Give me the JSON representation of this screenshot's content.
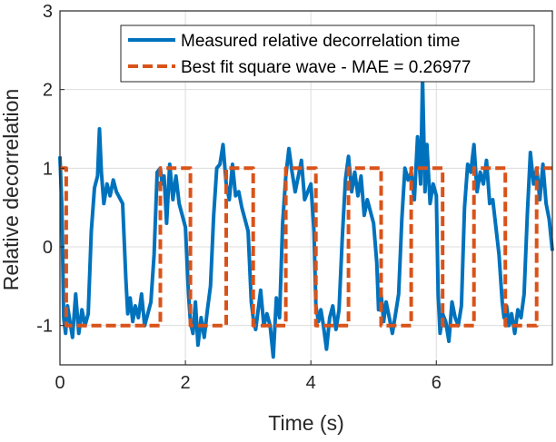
{
  "chart_data": {
    "type": "line",
    "title": "",
    "xlabel": "Time (s)",
    "ylabel": "Relative decorrelation",
    "xlim": [
      0,
      7.85
    ],
    "ylim": [
      -1.5,
      3
    ],
    "xticks": [
      0,
      2,
      4,
      6
    ],
    "yticks": [
      -1,
      0,
      1,
      2,
      3
    ],
    "grid": true,
    "legend_position": "top-right",
    "series": [
      {
        "name": "Measured relative decorrelation time",
        "color": "#0072BD",
        "style": "solid",
        "x": [
          0,
          0.03,
          0.06,
          0.09,
          0.12,
          0.16,
          0.2,
          0.25,
          0.3,
          0.35,
          0.4,
          0.45,
          0.5,
          0.55,
          0.6,
          0.63,
          0.66,
          0.7,
          0.75,
          0.8,
          0.85,
          0.9,
          1.0,
          1.05,
          1.08,
          1.12,
          1.16,
          1.2,
          1.25,
          1.3,
          1.35,
          1.4,
          1.45,
          1.5,
          1.55,
          1.6,
          1.63,
          1.66,
          1.7,
          1.75,
          1.8,
          1.85,
          1.9,
          2.0,
          2.05,
          2.08,
          2.12,
          2.16,
          2.2,
          2.25,
          2.3,
          2.35,
          2.4,
          2.45,
          2.5,
          2.55,
          2.6,
          2.65,
          2.7,
          2.75,
          2.8,
          2.85,
          2.9,
          3.0,
          3.05,
          3.08,
          3.12,
          3.16,
          3.2,
          3.25,
          3.3,
          3.35,
          3.4,
          3.45,
          3.5,
          3.55,
          3.6,
          3.65,
          3.7,
          3.75,
          3.8,
          3.85,
          3.9,
          4.0,
          4.05,
          4.08,
          4.12,
          4.16,
          4.2,
          4.25,
          4.3,
          4.35,
          4.4,
          4.45,
          4.5,
          4.55,
          4.6,
          4.65,
          4.7,
          4.75,
          4.8,
          4.85,
          4.9,
          5.0,
          5.05,
          5.08,
          5.12,
          5.16,
          5.2,
          5.25,
          5.3,
          5.35,
          5.4,
          5.45,
          5.5,
          5.55,
          5.6,
          5.65,
          5.7,
          5.75,
          5.78,
          5.82,
          5.85,
          5.9,
          5.95,
          6.0,
          6.03,
          6.06,
          6.1,
          6.15,
          6.2,
          6.25,
          6.3,
          6.35,
          6.4,
          6.45,
          6.5,
          6.55,
          6.6,
          6.65,
          6.7,
          6.75,
          6.8,
          6.85,
          6.9,
          7.0,
          7.05,
          7.08,
          7.12,
          7.16,
          7.2,
          7.25,
          7.3,
          7.35,
          7.4,
          7.45,
          7.5,
          7.55,
          7.6,
          7.65,
          7.7,
          7.75,
          7.8,
          7.85
        ],
        "y": [
          1.15,
          0.5,
          -0.9,
          -1.1,
          -0.75,
          -0.95,
          -1.15,
          -0.6,
          -1.1,
          -0.8,
          -1.0,
          -0.85,
          0.2,
          0.75,
          0.9,
          1.5,
          0.95,
          0.55,
          0.8,
          0.65,
          0.85,
          0.7,
          0.55,
          -0.4,
          -0.85,
          -0.65,
          -0.95,
          -0.75,
          -0.9,
          -0.6,
          -1.0,
          -0.85,
          -0.7,
          -0.1,
          0.95,
          1.0,
          0.8,
          0.9,
          0.3,
          1.05,
          0.6,
          0.9,
          0.55,
          0.25,
          -0.6,
          -0.95,
          -1.1,
          -0.7,
          -1.25,
          -0.9,
          -1.15,
          -0.8,
          -0.5,
          0.4,
          1.0,
          1.05,
          1.3,
          0.8,
          0.6,
          1.05,
          0.65,
          0.7,
          0.5,
          0.2,
          -0.7,
          -0.9,
          -1.05,
          -0.8,
          -0.55,
          -1.0,
          -0.85,
          -1.0,
          -1.4,
          -0.65,
          -0.9,
          0.3,
          0.9,
          1.25,
          0.95,
          0.7,
          0.9,
          1.1,
          0.6,
          0.8,
          0.2,
          -0.75,
          -0.95,
          -0.8,
          -1.0,
          -1.3,
          -0.9,
          -0.75,
          -1.05,
          -0.8,
          0.1,
          0.85,
          1.15,
          0.7,
          0.95,
          0.65,
          0.9,
          0.4,
          0.6,
          0.3,
          -0.2,
          -0.8,
          -0.6,
          -0.95,
          -0.7,
          -0.9,
          -1.1,
          -0.85,
          -0.6,
          0.35,
          1.0,
          0.85,
          0.95,
          0.6,
          1.4,
          0.8,
          2.15,
          0.7,
          1.3,
          0.55,
          0.8,
          0.65,
          -0.6,
          -1.1,
          -0.85,
          -0.95,
          -1.2,
          -0.7,
          -0.9,
          -1.0,
          -0.75,
          0.5,
          1.05,
          0.95,
          1.3,
          0.7,
          0.95,
          0.8,
          1.1,
          0.55,
          0.6,
          -0.1,
          -0.7,
          -0.9,
          -0.75,
          -1.0,
          -0.85,
          -1.1,
          -0.8,
          -0.9,
          -0.6,
          0.4,
          1.2,
          0.8,
          1.0,
          0.6,
          1.05,
          0.55,
          0.35,
          -0.05
        ]
      },
      {
        "name": "Best fit square wave - MAE = 0.26977",
        "color": "#D95319",
        "style": "dashed",
        "x": [
          0,
          0.1,
          0.1,
          1.05,
          1.05,
          1.05,
          1.6,
          1.6,
          2.08,
          2.08,
          2.65,
          2.65,
          3.08,
          3.08,
          3.6,
          3.6,
          4.08,
          4.08,
          4.6,
          4.6,
          5.12,
          5.12,
          5.6,
          5.6,
          6.1,
          6.1,
          6.6,
          6.6,
          7.1,
          7.1,
          7.6,
          7.6,
          7.85
        ],
        "y": [
          1,
          1,
          -1,
          -1,
          -1,
          -1,
          -1,
          1,
          1,
          -1,
          -1,
          1,
          1,
          -1,
          -1,
          1,
          1,
          -1,
          -1,
          1,
          1,
          -1,
          -1,
          1,
          1,
          -1,
          -1,
          1,
          1,
          -1,
          -1,
          1,
          1
        ]
      }
    ]
  }
}
